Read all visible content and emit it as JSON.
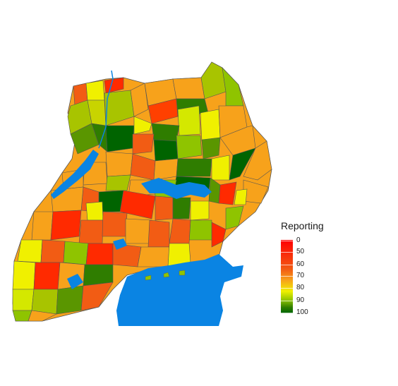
{
  "legend": {
    "title": "Reporting",
    "ticks": [
      {
        "label": "0",
        "value": 0
      },
      {
        "label": "50",
        "value": 50
      },
      {
        "label": "60",
        "value": 60
      },
      {
        "label": "70",
        "value": 70
      },
      {
        "label": "80",
        "value": 80
      },
      {
        "label": "90",
        "value": 90
      },
      {
        "label": "100",
        "value": 100
      }
    ],
    "colors": {
      "0": "#ff0000",
      "50": "#f25c14",
      "60": "#f7a21b",
      "70": "#f0f000",
      "80": "#8fc400",
      "90": "#2f7d00",
      "100": "#006400"
    }
  },
  "map": {
    "region": "Uganda districts",
    "water_color": "#0a84e3",
    "border_color": "#555555"
  }
}
